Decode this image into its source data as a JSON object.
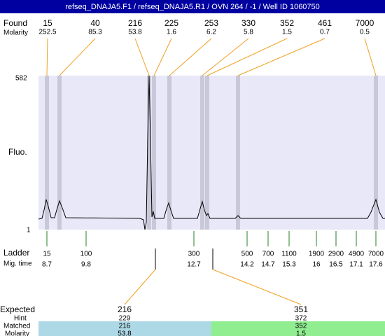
{
  "title": "refseq_DNAJA5.F1 / refseq_DNAJA5.R1 / OVN 264 / -1 / Well ID 1060750",
  "found": {
    "label": "Found",
    "sublabel": "Molarity",
    "peaks": [
      {
        "size": 15,
        "molarity": 252.5
      },
      {
        "size": 40,
        "molarity": 85.3
      },
      {
        "size": 216,
        "molarity": 53.8
      },
      {
        "size": 225,
        "molarity": 1.6
      },
      {
        "size": 253,
        "molarity": 6.2
      },
      {
        "size": 330,
        "molarity": 5.8
      },
      {
        "size": 352,
        "molarity": 1.5
      },
      {
        "size": 461,
        "molarity": 0.7
      },
      {
        "size": 7000,
        "molarity": 0.5
      }
    ]
  },
  "fluo": {
    "label": "Fluo.",
    "max": 582,
    "min": 1
  },
  "ladder": {
    "label": "Ladder",
    "sublabel": "Mig. time",
    "sizes": [
      15,
      100,
      300,
      500,
      700,
      1100,
      1900,
      2900,
      4900,
      7000
    ],
    "times": [
      8.7,
      9.8,
      12.7,
      14.2,
      14.7,
      15.3,
      16,
      16.5,
      17.1,
      17.6
    ]
  },
  "expected": {
    "label": "Expected",
    "hint_label": "Hint",
    "matched_label": "Matched",
    "molarity_label": "Molarity",
    "columns": [
      {
        "size": 216,
        "hint": 229,
        "matched": 216,
        "molarity": 53.8
      },
      {
        "size": 351,
        "hint": 372,
        "matched": 352,
        "molarity": 1.5
      }
    ]
  }
}
